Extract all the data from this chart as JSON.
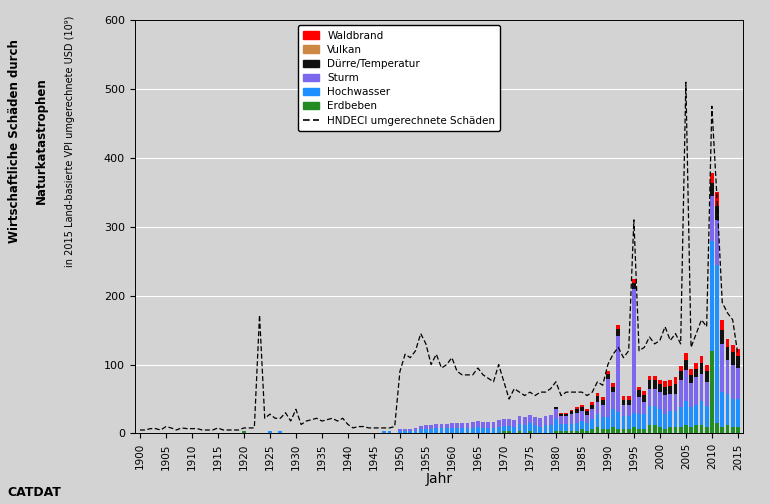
{
  "years": [
    1900,
    1901,
    1902,
    1903,
    1904,
    1905,
    1906,
    1907,
    1908,
    1909,
    1910,
    1911,
    1912,
    1913,
    1914,
    1915,
    1916,
    1917,
    1918,
    1919,
    1920,
    1921,
    1922,
    1923,
    1924,
    1925,
    1926,
    1927,
    1928,
    1929,
    1930,
    1931,
    1932,
    1933,
    1934,
    1935,
    1936,
    1937,
    1938,
    1939,
    1940,
    1941,
    1942,
    1943,
    1944,
    1945,
    1946,
    1947,
    1948,
    1949,
    1950,
    1951,
    1952,
    1953,
    1954,
    1955,
    1956,
    1957,
    1958,
    1959,
    1960,
    1961,
    1962,
    1963,
    1964,
    1965,
    1966,
    1967,
    1968,
    1969,
    1970,
    1971,
    1972,
    1973,
    1974,
    1975,
    1976,
    1977,
    1978,
    1979,
    1980,
    1981,
    1982,
    1983,
    1984,
    1985,
    1986,
    1987,
    1988,
    1989,
    1990,
    1991,
    1992,
    1993,
    1994,
    1995,
    1996,
    1997,
    1998,
    1999,
    2000,
    2001,
    2002,
    2003,
    2004,
    2005,
    2006,
    2007,
    2008,
    2009,
    2010,
    2011,
    2012,
    2013,
    2014,
    2015
  ],
  "waldbrand": [
    0,
    0,
    0,
    0,
    0,
    0,
    0,
    0,
    0,
    0,
    0,
    0,
    0,
    0,
    0,
    0,
    0,
    0,
    0,
    0,
    0,
    0,
    0,
    0,
    0,
    0,
    0,
    0,
    0,
    0,
    0,
    0,
    0,
    0,
    0,
    0,
    0,
    0,
    0,
    0,
    0,
    0,
    0,
    0,
    0,
    0,
    0,
    0,
    0,
    0,
    0,
    0,
    0,
    0,
    0,
    0,
    0,
    0,
    0,
    0,
    0,
    0,
    0,
    0,
    0,
    0,
    0,
    0,
    0,
    0,
    0,
    0,
    0,
    0,
    0,
    0,
    0,
    0,
    0,
    0,
    0,
    2,
    2,
    2,
    3,
    3,
    3,
    4,
    4,
    4,
    5,
    5,
    6,
    5,
    5,
    6,
    5,
    6,
    7,
    7,
    6,
    8,
    8,
    10,
    8,
    10,
    8,
    8,
    10,
    10,
    15,
    20,
    15,
    12,
    10,
    10
  ],
  "vulkan": [
    0,
    0,
    0,
    0,
    0,
    0,
    0,
    0,
    0,
    0,
    0,
    0,
    0,
    0,
    0,
    0,
    0,
    0,
    0,
    0,
    0,
    0,
    0,
    0,
    0,
    0,
    0,
    0,
    0,
    0,
    0,
    0,
    0,
    0,
    0,
    0,
    0,
    0,
    0,
    0,
    0,
    0,
    0,
    0,
    0,
    0,
    0,
    0,
    0,
    0,
    0,
    0,
    0,
    0,
    0,
    0,
    0,
    0,
    0,
    0,
    0,
    0,
    0,
    0,
    0,
    0,
    0,
    0,
    0,
    0,
    0,
    0,
    0,
    0,
    0,
    0,
    0,
    0,
    0,
    0,
    0,
    0,
    0,
    0,
    0,
    0,
    0,
    0,
    0,
    0,
    0,
    0,
    0,
    0,
    0,
    0,
    0,
    0,
    0,
    0,
    0,
    0,
    0,
    0,
    0,
    0,
    0,
    0,
    0,
    0,
    0,
    0,
    0,
    0,
    0,
    0
  ],
  "durre": [
    0,
    0,
    0,
    0,
    0,
    0,
    0,
    0,
    0,
    0,
    0,
    0,
    0,
    0,
    0,
    0,
    0,
    0,
    0,
    0,
    0,
    0,
    0,
    0,
    0,
    0,
    0,
    0,
    0,
    0,
    0,
    0,
    0,
    0,
    0,
    0,
    0,
    0,
    0,
    0,
    0,
    0,
    0,
    0,
    0,
    0,
    0,
    0,
    0,
    0,
    0,
    0,
    0,
    0,
    0,
    0,
    0,
    0,
    0,
    0,
    0,
    0,
    0,
    0,
    0,
    0,
    0,
    0,
    0,
    0,
    0,
    0,
    0,
    0,
    0,
    0,
    0,
    0,
    0,
    0,
    2,
    3,
    3,
    4,
    5,
    5,
    5,
    6,
    8,
    7,
    7,
    8,
    10,
    8,
    8,
    8,
    10,
    10,
    12,
    12,
    12,
    12,
    12,
    15,
    12,
    15,
    12,
    12,
    15,
    15,
    18,
    20,
    20,
    18,
    18,
    18
  ],
  "sturm": [
    0,
    0,
    0,
    0,
    0,
    0,
    0,
    0,
    0,
    0,
    0,
    0,
    0,
    0,
    0,
    0,
    0,
    0,
    0,
    0,
    0,
    0,
    0,
    0,
    0,
    0,
    0,
    0,
    0,
    0,
    0,
    0,
    0,
    0,
    0,
    0,
    0,
    0,
    0,
    0,
    0,
    0,
    0,
    0,
    0,
    0,
    0,
    0,
    0,
    0,
    3,
    3,
    3,
    4,
    4,
    5,
    5,
    5,
    6,
    6,
    7,
    7,
    7,
    7,
    8,
    8,
    8,
    8,
    9,
    10,
    10,
    10,
    10,
    12,
    12,
    12,
    12,
    12,
    14,
    15,
    15,
    12,
    12,
    15,
    15,
    15,
    12,
    15,
    18,
    18,
    55,
    25,
    110,
    15,
    15,
    180,
    25,
    18,
    25,
    25,
    25,
    28,
    25,
    25,
    40,
    45,
    35,
    40,
    40,
    35,
    65,
    65,
    70,
    50,
    50,
    45
  ],
  "hochwasser": [
    0,
    0,
    0,
    0,
    1,
    1,
    0,
    0,
    0,
    0,
    0,
    0,
    0,
    0,
    0,
    0,
    0,
    0,
    0,
    0,
    0,
    0,
    0,
    0,
    0,
    3,
    0,
    3,
    0,
    0,
    0,
    0,
    0,
    0,
    0,
    0,
    0,
    0,
    0,
    0,
    0,
    0,
    0,
    0,
    0,
    0,
    0,
    3,
    3,
    0,
    4,
    4,
    4,
    4,
    7,
    7,
    7,
    8,
    8,
    8,
    8,
    8,
    8,
    8,
    8,
    10,
    8,
    8,
    8,
    10,
    8,
    8,
    10,
    10,
    12,
    12,
    12,
    10,
    12,
    12,
    18,
    10,
    10,
    10,
    12,
    12,
    12,
    15,
    18,
    18,
    18,
    25,
    25,
    20,
    20,
    20,
    22,
    22,
    28,
    28,
    25,
    22,
    22,
    22,
    28,
    35,
    28,
    30,
    35,
    30,
    160,
    230,
    50,
    45,
    40,
    40
  ],
  "erdbeben": [
    0,
    0,
    0,
    0,
    0,
    0,
    0,
    0,
    0,
    0,
    0,
    0,
    0,
    0,
    0,
    0,
    0,
    0,
    0,
    0,
    3,
    0,
    0,
    0,
    0,
    0,
    0,
    0,
    0,
    0,
    0,
    0,
    0,
    0,
    0,
    0,
    0,
    0,
    0,
    0,
    0,
    0,
    0,
    0,
    0,
    0,
    0,
    0,
    0,
    0,
    0,
    0,
    0,
    0,
    0,
    0,
    0,
    0,
    0,
    0,
    0,
    0,
    0,
    0,
    0,
    0,
    0,
    0,
    0,
    0,
    3,
    3,
    0,
    3,
    0,
    3,
    0,
    0,
    0,
    0,
    3,
    3,
    3,
    3,
    3,
    6,
    3,
    6,
    10,
    6,
    6,
    10,
    6,
    6,
    6,
    10,
    6,
    6,
    12,
    12,
    10,
    6,
    10,
    10,
    10,
    12,
    10,
    12,
    12,
    10,
    120,
    15,
    10,
    12,
    10,
    10
  ],
  "hndeci": [
    5,
    5,
    7,
    7,
    5,
    10,
    8,
    5,
    8,
    7,
    7,
    7,
    5,
    5,
    5,
    8,
    5,
    5,
    5,
    5,
    8,
    8,
    8,
    172,
    22,
    28,
    22,
    22,
    30,
    18,
    35,
    13,
    18,
    20,
    22,
    18,
    20,
    22,
    18,
    22,
    13,
    8,
    10,
    10,
    8,
    8,
    8,
    8,
    8,
    10,
    90,
    115,
    110,
    120,
    145,
    130,
    100,
    115,
    95,
    100,
    110,
    90,
    85,
    85,
    85,
    95,
    85,
    80,
    75,
    100,
    75,
    50,
    65,
    60,
    55,
    60,
    55,
    60,
    60,
    65,
    75,
    55,
    60,
    60,
    60,
    60,
    55,
    60,
    75,
    70,
    100,
    115,
    125,
    110,
    120,
    310,
    120,
    125,
    140,
    130,
    135,
    155,
    135,
    145,
    130,
    510,
    125,
    145,
    165,
    155,
    475,
    340,
    190,
    175,
    165,
    115
  ],
  "ylabel_line1": "Wirtschaftliche Schäden durch",
  "ylabel_line2": "Naturkatastrophen",
  "ylabel_line3": "in 2015 Land-basierte VPI umgerechnete USD (10⁹)",
  "xlabel": "Jahr",
  "legend_labels": [
    "Waldbrand",
    "Vulkan",
    "Dürre/Temperatur",
    "Sturm",
    "Hochwasser",
    "Erdbeben",
    "HNDECI umgerechnete Schäden"
  ],
  "colors": {
    "waldbrand": "#FF0000",
    "vulkan": "#CC8844",
    "durre": "#111111",
    "sturm": "#7B68EE",
    "hochwasser": "#1E90FF",
    "erdbeben": "#228B22"
  },
  "bg_color": "#D3D3D3",
  "plot_bg": "#D3D3D3",
  "ylim": [
    0,
    600
  ],
  "bar_width": 0.75
}
